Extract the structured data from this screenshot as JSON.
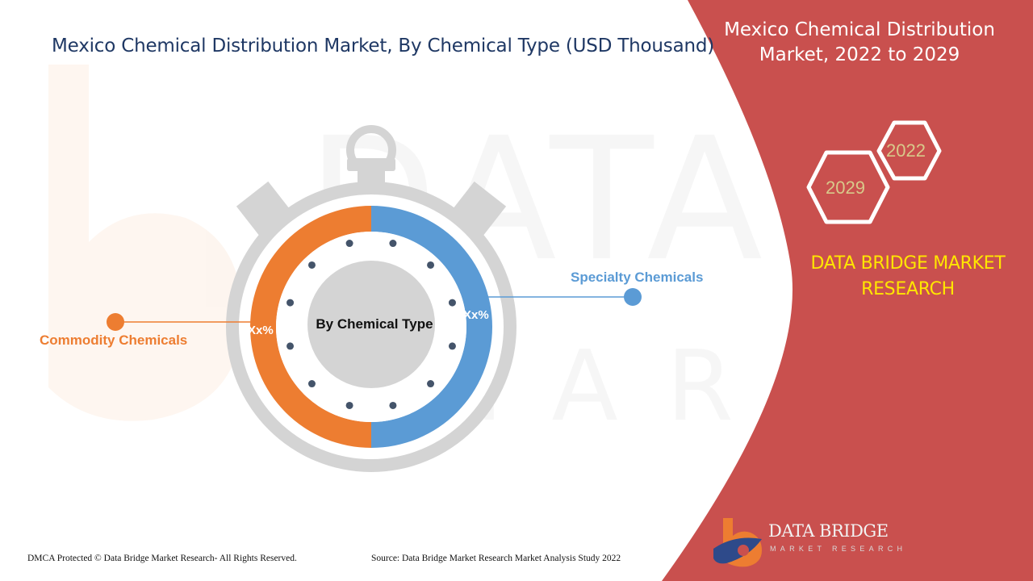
{
  "title": "Mexico Chemical Distribution Market, By Chemical Type (USD Thousand)",
  "side_panel": {
    "title": "Mexico Chemical Distribution Market, 2022 to 2029",
    "year_start": "2022",
    "year_end": "2029",
    "brand": "DATA BRIDGE MARKET RESEARCH",
    "panel_color": "#c9504e",
    "brand_color": "#ffe600"
  },
  "chart_data": {
    "type": "pie",
    "title": "Mexico Chemical Distribution Market, By Chemical Type (USD Thousand)",
    "center_label": "By Chemical Type",
    "segments": [
      {
        "name": "Commodity Chemicals",
        "label": "Xx%",
        "share": 50,
        "color": "#ed7d31"
      },
      {
        "name": "Specialty Chemicals",
        "label": "Xx%",
        "share": 50,
        "color": "#5b9bd5"
      }
    ]
  },
  "footer": {
    "copyright": "DMCA Protected © Data Bridge Market Research- All Rights Reserved.",
    "source": "Source: Data Bridge Market Research Market Analysis Study 2022"
  },
  "logo": {
    "name": "DATA BRIDGE",
    "tagline": "MARKET RESEARCH"
  },
  "icons": {
    "stopwatch": "stopwatch-icon",
    "hexagon": "hexagon-icon",
    "logo": "data-bridge-logo-icon"
  }
}
